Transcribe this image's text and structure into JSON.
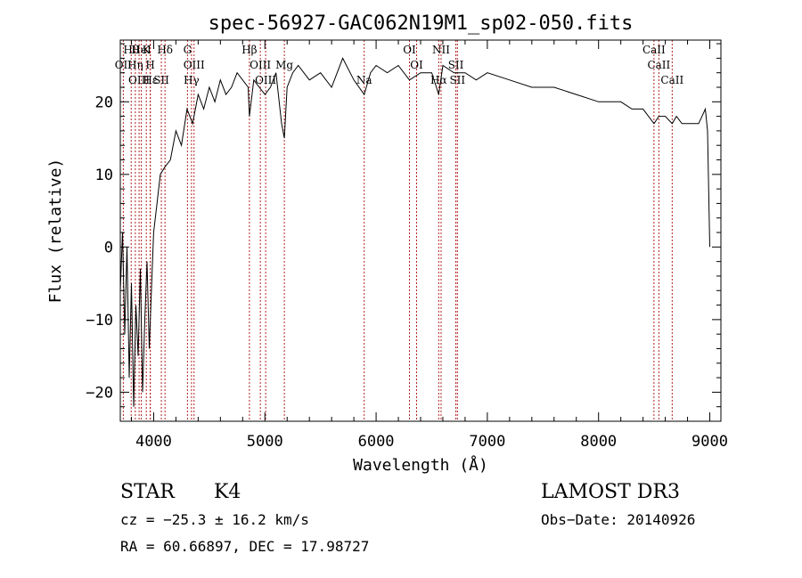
{
  "chart_data": {
    "type": "line",
    "title": "spec-56927-GAC062N19M1_sp02-050.fits",
    "xlabel": "Wavelength (Å)",
    "ylabel": "Flux (relative)",
    "xlim": [
      3700,
      9100
    ],
    "ylim": [
      -24,
      28.5
    ],
    "xticks": [
      4000,
      5000,
      6000,
      7000,
      8000,
      9000
    ],
    "yticks": [
      -20,
      -10,
      0,
      10,
      20
    ],
    "grid": false,
    "series": [
      {
        "name": "spectrum",
        "x": [
          3700,
          3720,
          3740,
          3760,
          3780,
          3800,
          3820,
          3840,
          3860,
          3880,
          3900,
          3920,
          3940,
          3960,
          3980,
          4000,
          4030,
          4060,
          4100,
          4150,
          4200,
          4250,
          4300,
          4350,
          4400,
          4450,
          4500,
          4550,
          4600,
          4650,
          4700,
          4750,
          4800,
          4850,
          4861,
          4900,
          4950,
          5000,
          5050,
          5100,
          5150,
          5175,
          5200,
          5250,
          5300,
          5400,
          5500,
          5600,
          5700,
          5800,
          5893,
          5950,
          6000,
          6100,
          6200,
          6300,
          6400,
          6500,
          6563,
          6600,
          6700,
          6800,
          6900,
          7000,
          7200,
          7400,
          7600,
          7800,
          8000,
          8100,
          8200,
          8300,
          8400,
          8498,
          8542,
          8600,
          8662,
          8700,
          8750,
          8800,
          8850,
          8900,
          8930,
          8960,
          8980,
          9000
        ],
        "y": [
          -6,
          2,
          -12,
          0,
          -18,
          -5,
          -22,
          -8,
          -15,
          -3,
          -20,
          -10,
          -2,
          -14,
          -6,
          2,
          6,
          10,
          11,
          12,
          16,
          14,
          19,
          17,
          21,
          19,
          22,
          20,
          23,
          21,
          22,
          24,
          23,
          22,
          18,
          23,
          22,
          21,
          22,
          24,
          17,
          15,
          22,
          24,
          25,
          23,
          24,
          22,
          26,
          23,
          21,
          24,
          25,
          24,
          25,
          23,
          24,
          24,
          21,
          25,
          24,
          24,
          23,
          24,
          23,
          22,
          22,
          21,
          20,
          20,
          20,
          19,
          19,
          17,
          18,
          18,
          17,
          18,
          17,
          17,
          17,
          17,
          18,
          19,
          16,
          0
        ]
      }
    ],
    "lines": [
      {
        "label": "Hθ",
        "x": 3798
      },
      {
        "label": "OII",
        "x": 3727
      },
      {
        "label": "OIII",
        "x": 3869
      },
      {
        "label": "K",
        "x": 3934
      },
      {
        "label": "H",
        "x": 3969
      },
      {
        "label": "Hε",
        "x": 3970
      },
      {
        "label": "HeI",
        "x": 3889
      },
      {
        "label": "Hη",
        "x": 3835
      },
      {
        "label": "SII",
        "x": 4069
      },
      {
        "label": "Hδ",
        "x": 4102
      },
      {
        "label": "OIII",
        "x": 4363
      },
      {
        "label": "Hγ",
        "x": 4340
      },
      {
        "label": "G",
        "x": 4304
      },
      {
        "label": "OIII",
        "x": 4959
      },
      {
        "label": "OIII",
        "x": 5007
      },
      {
        "label": "Hβ",
        "x": 4861
      },
      {
        "label": "Mg",
        "x": 5175
      },
      {
        "label": "Na",
        "x": 5893
      },
      {
        "label": "OI",
        "x": 6300
      },
      {
        "label": "OI",
        "x": 6364
      },
      {
        "label": "Hα",
        "x": 6563
      },
      {
        "label": "NII",
        "x": 6584
      },
      {
        "label": "SII",
        "x": 6717
      },
      {
        "label": "SII",
        "x": 6731
      },
      {
        "label": "CaII",
        "x": 8498
      },
      {
        "label": "CaII",
        "x": 8542
      },
      {
        "label": "CaII",
        "x": 8662
      }
    ]
  },
  "info": {
    "obj_class": "STAR",
    "subclass": "K4",
    "survey": "LAMOST DR3",
    "cz_text": "cz = −25.3 ± 16.2 km/s",
    "obs_date": "Obs−Date: 20140926",
    "radec": "RA =  60.66897, DEC =  17.98727"
  }
}
